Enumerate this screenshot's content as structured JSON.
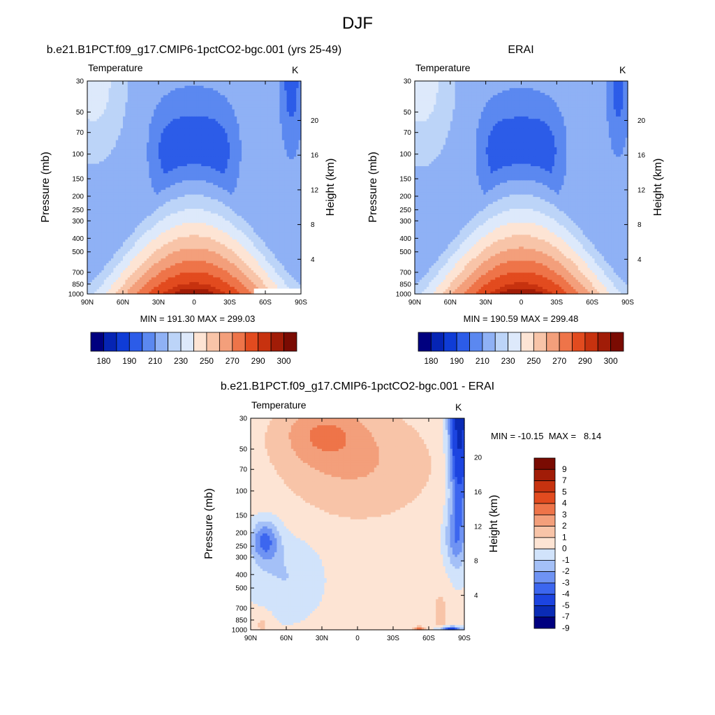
{
  "page": {
    "title": "DJF"
  },
  "palettes": {
    "abs": [
      "#00007f",
      "#0524b4",
      "#0f3cd6",
      "#2c5ce8",
      "#5b88f0",
      "#8fb1f5",
      "#bcd4f8",
      "#dde9fb",
      "#fde4d4",
      "#f8c4a8",
      "#f39f7b",
      "#ee7449",
      "#e24b1f",
      "#c7320f",
      "#a11c07",
      "#7a0b02"
    ],
    "diff": [
      "#00007f",
      "#0a2bb5",
      "#1c44e0",
      "#3c66ef",
      "#6f93f3",
      "#a4c0f7",
      "#d1e3fb",
      "#fde4d4",
      "#f8c4a8",
      "#f39f7b",
      "#ee7449",
      "#e24b1f",
      "#c7320f",
      "#a11c07",
      "#7a0b02"
    ]
  },
  "panels": [
    {
      "title": "b.e21.B1PCT.f09_g17.CMIP6-1pctCO2-bgc.001 (yrs 25-49)",
      "left_label": "Temperature",
      "right_label": "K",
      "ylabel": "Pressure (mb)",
      "ylabel2": "Height (km)",
      "stats": "MIN = 191.30  MAX = 299.03",
      "colorbar_labels": [
        "180",
        "190",
        "210",
        "230",
        "250",
        "270",
        "290",
        "300"
      ]
    },
    {
      "title": "ERAI",
      "left_label": "Temperature",
      "right_label": "K",
      "ylabel": "Pressure (mb)",
      "ylabel2": "Height (km)",
      "stats": "MIN = 190.59  MAX = 299.48",
      "colorbar_labels": [
        "180",
        "190",
        "210",
        "230",
        "250",
        "270",
        "290",
        "300"
      ]
    },
    {
      "title": "b.e21.B1PCT.f09_g17.CMIP6-1pctCO2-bgc.001 - ERAI",
      "left_label": "Temperature",
      "right_label": "K",
      "ylabel": "Pressure (mb)",
      "ylabel2": "Height (km)",
      "stats": "MIN = -10.15  MAX =   8.14",
      "colorbar_labels": [
        "9",
        "7",
        "5",
        "4",
        "3",
        "2",
        "1",
        "0",
        "-1",
        "-2",
        "-3",
        "-4",
        "-5",
        "-7",
        "-9"
      ]
    }
  ],
  "chart_data": [
    {
      "type": "heatmap",
      "title": "b.e21.B1PCT.f09_g17.CMIP6-1pctCO2-bgc.001 (yrs 25-49)",
      "variable": "Temperature",
      "units": "K",
      "xlabel": "",
      "ylabel": "Pressure (mb)",
      "ylabel2": "Height (km)",
      "x_ticks": [
        "90N",
        "60N",
        "30N",
        "0",
        "30S",
        "60S",
        "90S"
      ],
      "y_ticks": [
        "30",
        "50",
        "70",
        "100",
        "150",
        "200",
        "250",
        "300",
        "400",
        "500",
        "700",
        "850",
        "1000"
      ],
      "y2_ticks": [
        "20",
        "16",
        "12",
        "8",
        "4"
      ],
      "min": 191.3,
      "max": 299.03,
      "contour_levels": [
        180,
        185,
        190,
        200,
        210,
        220,
        230,
        240,
        250,
        260,
        270,
        280,
        290,
        295,
        300
      ],
      "colorbar_labels": [
        180,
        190,
        210,
        230,
        250,
        270,
        290,
        300
      ]
    },
    {
      "type": "heatmap",
      "title": "ERAI",
      "variable": "Temperature",
      "units": "K",
      "xlabel": "",
      "ylabel": "Pressure (mb)",
      "ylabel2": "Height (km)",
      "x_ticks": [
        "90N",
        "60N",
        "30N",
        "0",
        "30S",
        "60S",
        "90S"
      ],
      "y_ticks": [
        "30",
        "50",
        "70",
        "100",
        "150",
        "200",
        "250",
        "300",
        "400",
        "500",
        "700",
        "850",
        "1000"
      ],
      "y2_ticks": [
        "20",
        "16",
        "12",
        "8",
        "4"
      ],
      "min": 190.59,
      "max": 299.48,
      "contour_levels": [
        180,
        185,
        190,
        200,
        210,
        220,
        230,
        240,
        250,
        260,
        270,
        280,
        290,
        295,
        300
      ],
      "colorbar_labels": [
        180,
        190,
        210,
        230,
        250,
        270,
        290,
        300
      ]
    },
    {
      "type": "heatmap",
      "title": "b.e21.B1PCT.f09_g17.CMIP6-1pctCO2-bgc.001 - ERAI",
      "variable": "Temperature",
      "units": "K",
      "xlabel": "",
      "ylabel": "Pressure (mb)",
      "ylabel2": "Height (km)",
      "x_ticks": [
        "90N",
        "60N",
        "30N",
        "0",
        "30S",
        "60S",
        "90S"
      ],
      "y_ticks": [
        "30",
        "50",
        "70",
        "100",
        "150",
        "200",
        "250",
        "300",
        "400",
        "500",
        "700",
        "850",
        "1000"
      ],
      "y2_ticks": [
        "20",
        "16",
        "12",
        "8",
        "4"
      ],
      "min": -10.15,
      "max": 8.14,
      "contour_levels": [
        -9,
        -7,
        -5,
        -4,
        -3,
        -2,
        -1,
        0,
        1,
        2,
        3,
        4,
        5,
        7,
        9
      ],
      "colorbar_labels": [
        9,
        7,
        5,
        4,
        3,
        2,
        1,
        0,
        -1,
        -2,
        -3,
        -4,
        -5,
        -7,
        -9
      ]
    }
  ]
}
